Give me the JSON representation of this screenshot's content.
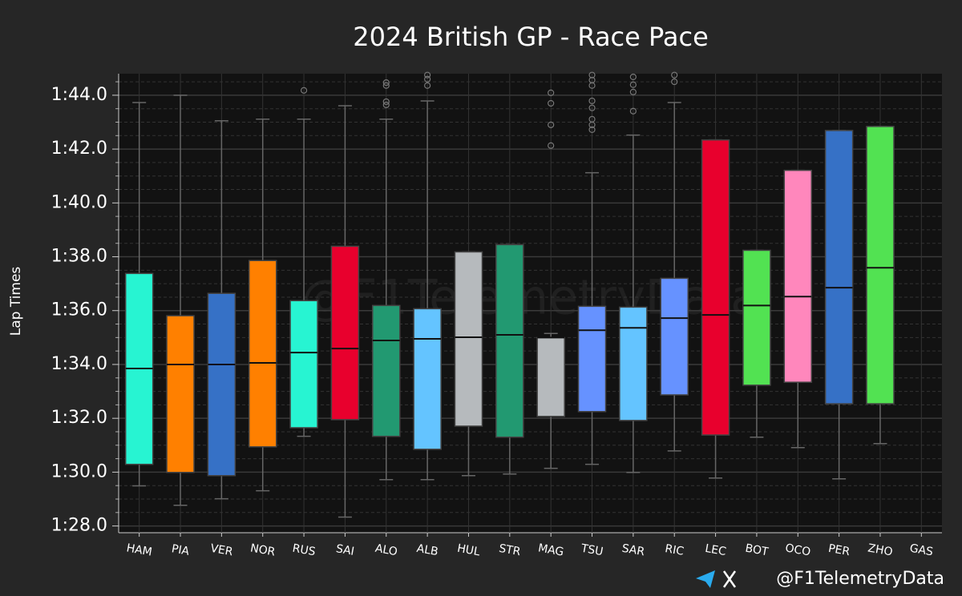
{
  "chart_data": {
    "type": "box",
    "title": "2024 British GP - Race Pace",
    "ylabel": "Lap Times",
    "watermark": "@F1TelemetryData",
    "footer_handle": "@F1TelemetryData",
    "categories": [
      "HAM",
      "PIA",
      "VER",
      "NOR",
      "RUS",
      "SAI",
      "ALO",
      "ALB",
      "HUL",
      "STR",
      "MAG",
      "TSU",
      "SAR",
      "RIC",
      "LEC",
      "BOT",
      "OCO",
      "PER",
      "ZHO",
      "GAS"
    ],
    "colors": [
      "#27F4D2",
      "#FF8000",
      "#3671C6",
      "#FF8000",
      "#27F4D2",
      "#E8002D",
      "#229971",
      "#64C4FF",
      "#B6BABD",
      "#229971",
      "#B6BABD",
      "#6692FF",
      "#64C4FF",
      "#6692FF",
      "#E8002D",
      "#52E252",
      "#FF87BC",
      "#3671C6",
      "#52E252",
      null
    ],
    "boxes": [
      {
        "low": 89.49,
        "q1": 90.29,
        "median": 93.85,
        "q3": 97.38,
        "high": 103.73,
        "outliers": []
      },
      {
        "low": 88.77,
        "q1": 89.99,
        "median": 94.0,
        "q3": 95.81,
        "high": 104.0,
        "outliers": []
      },
      {
        "low": 89.01,
        "q1": 89.87,
        "median": 94.0,
        "q3": 96.64,
        "high": 103.05,
        "outliers": []
      },
      {
        "low": 89.31,
        "q1": 90.94,
        "median": 94.06,
        "q3": 97.86,
        "high": 103.11,
        "outliers": []
      },
      {
        "low": 91.33,
        "q1": 91.65,
        "median": 94.44,
        "q3": 96.37,
        "high": 103.11,
        "outliers": [
          104.18
        ]
      },
      {
        "low": 88.33,
        "q1": 91.95,
        "median": 94.59,
        "q3": 98.39,
        "high": 103.61,
        "outliers": []
      },
      {
        "low": 89.72,
        "q1": 91.33,
        "median": 94.89,
        "q3": 96.19,
        "high": 103.11,
        "outliers": [
          103.64,
          103.76,
          104.36,
          104.47
        ]
      },
      {
        "low": 89.72,
        "q1": 90.85,
        "median": 94.95,
        "q3": 96.07,
        "high": 103.79,
        "outliers": [
          104.36,
          104.6,
          104.75
        ]
      },
      {
        "low": 89.87,
        "q1": 91.71,
        "median": 95.01,
        "q3": 98.18,
        "high": 98.18,
        "outliers": []
      },
      {
        "low": 89.93,
        "q1": 91.3,
        "median": 95.1,
        "q3": 98.45,
        "high": 98.45,
        "outliers": []
      },
      {
        "low": 90.14,
        "q1": 92.07,
        "median": 95.0,
        "q3": 95.0,
        "high": 95.15,
        "outliers": [
          102.13,
          102.9,
          103.7,
          104.09
        ]
      },
      {
        "low": 90.29,
        "q1": 92.25,
        "median": 95.27,
        "q3": 96.16,
        "high": 101.12,
        "outliers": [
          102.72,
          102.9,
          103.11,
          103.53,
          103.79,
          104.36,
          104.56,
          104.75
        ]
      },
      {
        "low": 89.99,
        "q1": 91.92,
        "median": 95.36,
        "q3": 96.13,
        "high": 102.52,
        "outliers": [
          103.41,
          104.12,
          104.39,
          104.68
        ]
      },
      {
        "low": 90.79,
        "q1": 92.87,
        "median": 95.72,
        "q3": 97.2,
        "high": 103.73,
        "outliers": [
          104.5,
          104.75
        ]
      },
      {
        "low": 89.78,
        "q1": 91.38,
        "median": 95.84,
        "q3": 102.34,
        "high": 102.34,
        "outliers": []
      },
      {
        "low": 91.3,
        "q1": 93.23,
        "median": 96.19,
        "q3": 98.24,
        "high": 98.24,
        "outliers": []
      },
      {
        "low": 90.91,
        "q1": 93.34,
        "median": 96.52,
        "q3": 101.21,
        "high": 101.21,
        "outliers": []
      },
      {
        "low": 89.75,
        "q1": 92.54,
        "median": 96.85,
        "q3": 102.69,
        "high": 102.69,
        "outliers": []
      },
      {
        "low": 91.06,
        "q1": 92.54,
        "median": 97.59,
        "q3": 102.84,
        "high": 102.84,
        "outliers": []
      },
      null
    ],
    "ylim": [
      87.75,
      104.8
    ],
    "yticks": [
      {
        "value": 88,
        "label": "1:28.0"
      },
      {
        "value": 90,
        "label": "1:30.0"
      },
      {
        "value": 92,
        "label": "1:32.0"
      },
      {
        "value": 94,
        "label": "1:34.0"
      },
      {
        "value": 96,
        "label": "1:36.0"
      },
      {
        "value": 98,
        "label": "1:38.0"
      },
      {
        "value": 100,
        "label": "1:40.0"
      },
      {
        "value": 102,
        "label": "1:42.0"
      },
      {
        "value": 104,
        "label": "1:44.0"
      }
    ],
    "yticks_minor": [
      88.5,
      89,
      89.5,
      90.5,
      91,
      91.5,
      92.5,
      93,
      93.5,
      94.5,
      95,
      95.5,
      96.5,
      97,
      97.5,
      98.5,
      99,
      99.5,
      100.5,
      101,
      101.5,
      102.5,
      103,
      103.5,
      104.5
    ],
    "grid": true
  }
}
